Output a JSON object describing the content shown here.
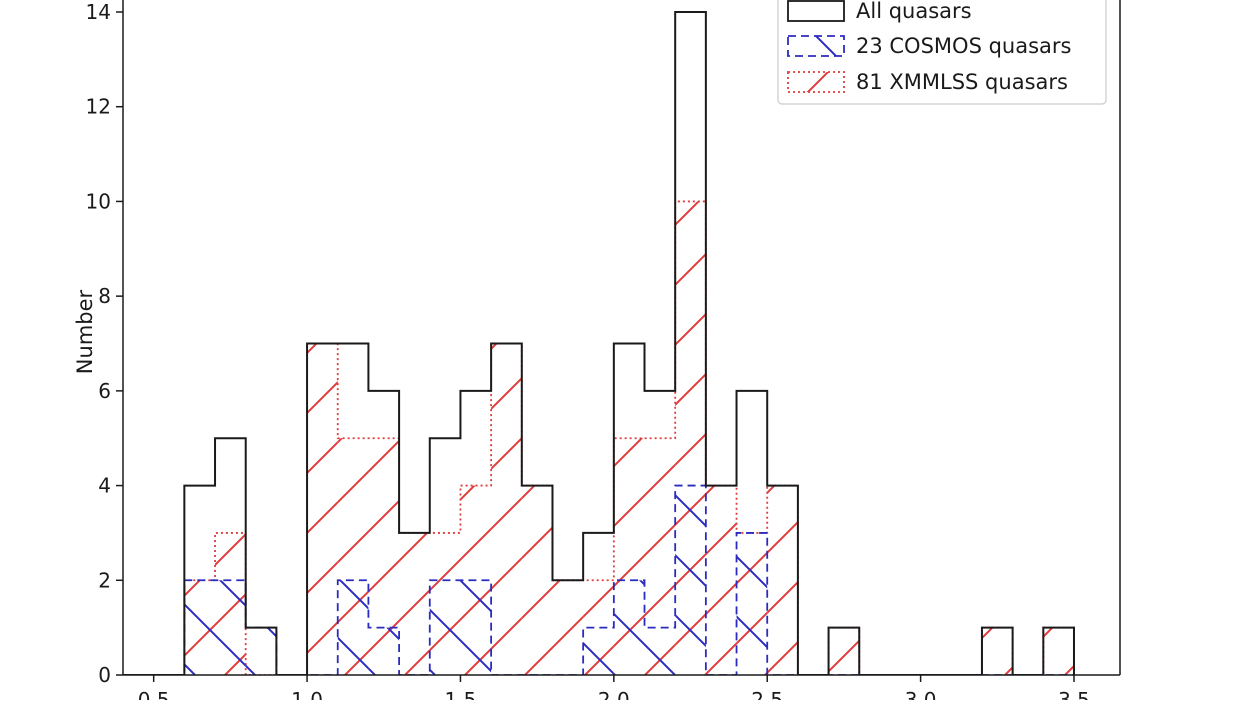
{
  "chart_data": {
    "type": "histogram",
    "ylabel": "Number",
    "xlabel": "",
    "xlim": [
      0.4,
      3.65
    ],
    "ylim": [
      0,
      14.4
    ],
    "x_ticks": [
      0.5,
      1.0,
      1.5,
      2.0,
      2.5,
      3.0,
      3.5
    ],
    "x_tick_labels": [
      "0.5",
      "1.0",
      "1.5",
      "2.0",
      "2.5",
      "3.0",
      "3.5"
    ],
    "y_ticks": [
      0,
      2,
      4,
      6,
      8,
      10,
      12,
      14
    ],
    "y_tick_labels": [
      "0",
      "2",
      "4",
      "6",
      "8",
      "10",
      "12",
      "14"
    ],
    "bin_edges": [
      0.4,
      0.5,
      0.6,
      0.7,
      0.8,
      0.9,
      1.0,
      1.1,
      1.2,
      1.3,
      1.4,
      1.5,
      1.6,
      1.7,
      1.8,
      1.9,
      2.0,
      2.1,
      2.2,
      2.3,
      2.4,
      2.5,
      2.6,
      2.7,
      2.8,
      2.9,
      3.0,
      3.1,
      3.2,
      3.3,
      3.4,
      3.5
    ],
    "legend_position": "upper right",
    "series": [
      {
        "name": "All quasars",
        "color": "#1a1a1a",
        "linestyle": "solid",
        "hatch": "none",
        "values": [
          0,
          0,
          4,
          5,
          1,
          0,
          7,
          7,
          6,
          3,
          5,
          6,
          7,
          4,
          2,
          3,
          7,
          6,
          14,
          4,
          6,
          4,
          0,
          1,
          0,
          0,
          0,
          0,
          1,
          0,
          1
        ]
      },
      {
        "name": "23 COSMOS quasars",
        "color": "#2b2bbf",
        "linestyle": "dashed",
        "hatch": "backslash",
        "values": [
          0,
          0,
          2,
          2,
          1,
          0,
          0,
          2,
          1,
          0,
          2,
          2,
          0,
          0,
          0,
          1,
          2,
          1,
          4,
          0,
          3,
          0,
          0,
          0,
          0,
          0,
          0,
          0,
          0,
          0,
          0
        ]
      },
      {
        "name": "81 XMMLSS quasars",
        "color": "#e03a3a",
        "linestyle": "dotted",
        "hatch": "slash",
        "values": [
          0,
          0,
          2,
          3,
          0,
          0,
          7,
          5,
          5,
          3,
          3,
          4,
          7,
          4,
          2,
          2,
          5,
          5,
          10,
          4,
          3,
          4,
          0,
          1,
          0,
          0,
          0,
          0,
          1,
          0,
          1
        ]
      }
    ]
  }
}
